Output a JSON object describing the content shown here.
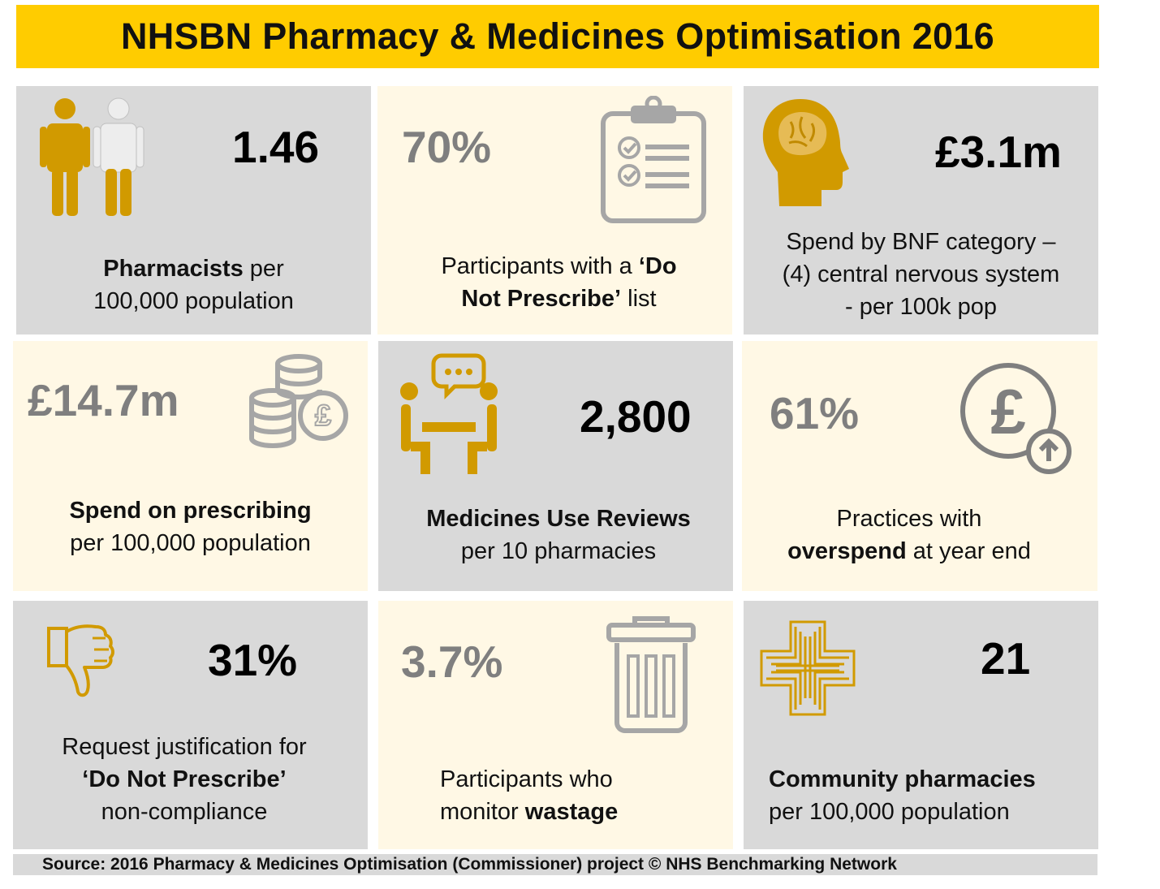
{
  "title": "NHSBN Pharmacy & Medicines Optimisation 2016",
  "colors": {
    "accent": "#FFCC00",
    "gold": "#D19A00",
    "grey_tile": "#D9D9D9",
    "cream_tile": "#FFF8E5",
    "muted_text": "#7F7F7F",
    "icon_grey": "#A6A6A6"
  },
  "tiles": [
    {
      "icon": "pharmacist-people-icon",
      "value": "1.46",
      "desc_bold": "Pharmacists",
      "desc_rest": " per",
      "desc_line2": "100,000 population"
    },
    {
      "icon": "clipboard-checklist-icon",
      "value": "70%",
      "desc_line1": "Participants with a ",
      "desc_line1_bold": "‘Do",
      "desc_line2_bold": "Not Prescribe’",
      "desc_line2_rest": " list"
    },
    {
      "icon": "head-brain-icon",
      "value": "£3.1m",
      "desc_line1": "Spend by BNF category –",
      "desc_line2": "(4) central nervous system",
      "desc_line3": "-  per 100k pop"
    },
    {
      "icon": "coins-pound-icon",
      "value": "£14.7m",
      "desc_line1_bold": "Spend on prescribing",
      "desc_line2": "per 100,000 population"
    },
    {
      "icon": "consultation-meeting-icon",
      "value": "2,800",
      "desc_line1_bold": "Medicines Use Reviews",
      "desc_line2": "per 10 pharmacies"
    },
    {
      "icon": "pound-overspend-icon",
      "value": "61%",
      "desc_line1": "Practices with",
      "desc_line2_bold": "overspend",
      "desc_line2_rest": " at year end"
    },
    {
      "icon": "thumbs-down-icon",
      "value": "31%",
      "desc_line1": "Request justification for",
      "desc_line2_bold": "‘Do Not Prescribe’",
      "desc_line3": "non-compliance"
    },
    {
      "icon": "trash-bin-icon",
      "value": "3.7%",
      "desc_line1": "Participants who",
      "desc_line2": "monitor ",
      "desc_line2_bold": "wastage"
    },
    {
      "icon": "pharmacy-cross-icon",
      "value": "21",
      "desc_line1_bold": "Community pharmacies",
      "desc_line2": "per 100,000 population"
    }
  ],
  "footer": "Source: 2016 Pharmacy & Medicines Optimisation (Commissioner) project  © NHS Benchmarking Network"
}
